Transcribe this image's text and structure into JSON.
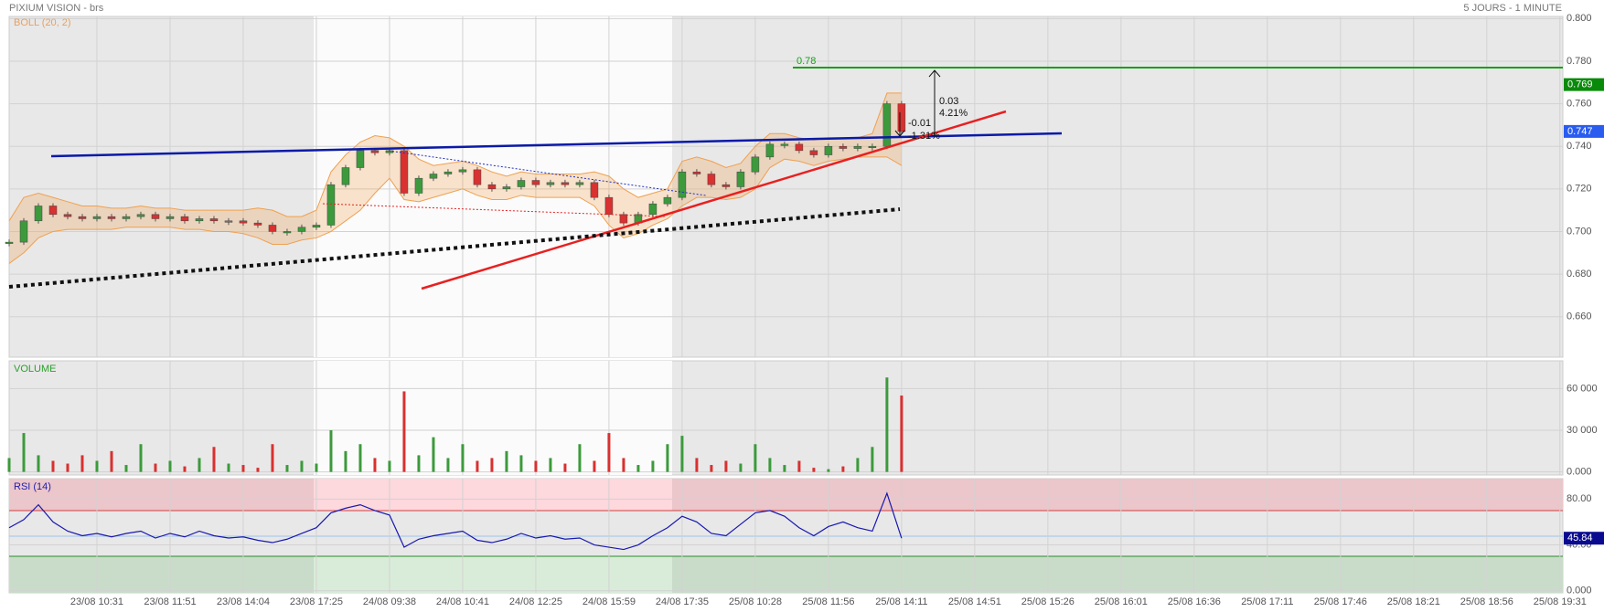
{
  "chart_data": {
    "type": "candlestick",
    "title": "PIXIUM VISION - brs",
    "subtitle": "5 JOURS - 1 MINUTE",
    "xlim": [
      0,
      106.2
    ],
    "xticks": [
      {
        "value": 6,
        "label": "23/08 10:31"
      },
      {
        "value": 11,
        "label": "23/08 11:51"
      },
      {
        "value": 16,
        "label": "23/08 14:04"
      },
      {
        "value": 21,
        "label": "23/08 17:25"
      },
      {
        "value": 26,
        "label": "24/08 09:38"
      },
      {
        "value": 31,
        "label": "24/08 10:41"
      },
      {
        "value": 36,
        "label": "24/08 12:25"
      },
      {
        "value": 41,
        "label": "24/08 15:59"
      },
      {
        "value": 46,
        "label": "24/08 17:35"
      },
      {
        "value": 51,
        "label": "25/08 10:28"
      },
      {
        "value": 56,
        "label": "25/08 11:56"
      },
      {
        "value": 61,
        "label": "25/08 14:11"
      },
      {
        "value": 66,
        "label": "25/08 14:51"
      },
      {
        "value": 71,
        "label": "25/08 15:26"
      },
      {
        "value": 76,
        "label": "25/08 16:01"
      },
      {
        "value": 81,
        "label": "25/08 16:36"
      },
      {
        "value": 86,
        "label": "25/08 17:11"
      },
      {
        "value": 91,
        "label": "25/08 17:46"
      },
      {
        "value": 96,
        "label": "25/08 18:21"
      },
      {
        "value": 101,
        "label": "25/08 18:56"
      },
      {
        "value": 106,
        "label": "25/08 19:31"
      }
    ],
    "grid": true,
    "price": {
      "label": "BOLL (20, 2)",
      "ylim": [
        0.641,
        0.801
      ],
      "yticks": [
        {
          "value": 0.66,
          "label": "0.660"
        },
        {
          "value": 0.68,
          "label": "0.680"
        },
        {
          "value": 0.7,
          "label": "0.700"
        },
        {
          "value": 0.72,
          "label": "0.720"
        },
        {
          "value": 0.74,
          "label": "0.740"
        },
        {
          "value": 0.76,
          "label": "0.760"
        },
        {
          "value": 0.78,
          "label": "0.780"
        },
        {
          "value": 0.8,
          "label": "0.800"
        }
      ],
      "close": [
        0.695,
        0.705,
        0.712,
        0.708,
        0.707,
        0.706,
        0.707,
        0.706,
        0.707,
        0.708,
        0.706,
        0.707,
        0.705,
        0.706,
        0.705,
        0.705,
        0.704,
        0.703,
        0.7,
        0.7,
        0.702,
        0.703,
        0.722,
        0.73,
        0.738,
        0.737,
        0.738,
        0.718,
        0.725,
        0.727,
        0.728,
        0.729,
        0.722,
        0.72,
        0.721,
        0.724,
        0.722,
        0.723,
        0.722,
        0.723,
        0.716,
        0.708,
        0.704,
        0.708,
        0.713,
        0.716,
        0.728,
        0.727,
        0.722,
        0.721,
        0.728,
        0.735,
        0.741,
        0.741,
        0.738,
        0.736,
        0.74,
        0.739,
        0.74,
        0.74,
        0.76,
        0.747
      ],
      "upper": [
        0.705,
        0.716,
        0.718,
        0.716,
        0.714,
        0.712,
        0.712,
        0.711,
        0.711,
        0.712,
        0.711,
        0.711,
        0.71,
        0.71,
        0.71,
        0.71,
        0.71,
        0.711,
        0.71,
        0.707,
        0.707,
        0.71,
        0.728,
        0.736,
        0.742,
        0.745,
        0.744,
        0.74,
        0.734,
        0.731,
        0.732,
        0.733,
        0.731,
        0.728,
        0.726,
        0.728,
        0.727,
        0.727,
        0.727,
        0.727,
        0.728,
        0.726,
        0.72,
        0.716,
        0.718,
        0.72,
        0.733,
        0.735,
        0.733,
        0.73,
        0.732,
        0.74,
        0.746,
        0.746,
        0.744,
        0.743,
        0.744,
        0.744,
        0.744,
        0.746,
        0.765,
        0.765
      ],
      "lower": [
        0.685,
        0.69,
        0.697,
        0.7,
        0.701,
        0.701,
        0.701,
        0.701,
        0.702,
        0.702,
        0.702,
        0.702,
        0.701,
        0.701,
        0.7,
        0.7,
        0.699,
        0.697,
        0.694,
        0.694,
        0.696,
        0.697,
        0.7,
        0.705,
        0.71,
        0.718,
        0.725,
        0.715,
        0.714,
        0.716,
        0.718,
        0.72,
        0.717,
        0.715,
        0.715,
        0.717,
        0.716,
        0.716,
        0.716,
        0.716,
        0.712,
        0.703,
        0.697,
        0.699,
        0.703,
        0.706,
        0.712,
        0.716,
        0.716,
        0.715,
        0.716,
        0.72,
        0.73,
        0.734,
        0.733,
        0.731,
        0.733,
        0.734,
        0.735,
        0.735,
        0.735,
        0.731
      ],
      "up_color": "#3c9a3c",
      "down_color": "#d93030",
      "band_color": "#f0a050",
      "high_marker": 0.769,
      "high_color": "#0a8a0a",
      "last_color": "#2a5cf0",
      "level": {
        "value": 0.777,
        "label": "0.78",
        "color": "#1aa01a"
      },
      "measure": [
        "0.03",
        "4.21%",
        "-0.01",
        "-1.31%"
      ]
    },
    "volume": {
      "label": "VOLUME",
      "ylim": [
        -2200,
        80000
      ],
      "yticks": [
        {
          "value": 0,
          "label": "0.000"
        },
        {
          "value": 30000,
          "label": "30 000"
        },
        {
          "value": 60000,
          "label": "60 000"
        }
      ],
      "values": [
        10000,
        28000,
        12000,
        8000,
        6000,
        12000,
        8000,
        15000,
        5000,
        20000,
        6000,
        8000,
        4000,
        10000,
        18000,
        6000,
        5000,
        3000,
        20000,
        5000,
        8000,
        6000,
        30000,
        15000,
        20000,
        10000,
        8000,
        58000,
        12000,
        25000,
        10000,
        20000,
        8000,
        10000,
        15000,
        12000,
        8000,
        10000,
        6000,
        20000,
        8000,
        28000,
        10000,
        5000,
        8000,
        20000,
        26000,
        10000,
        5000,
        8000,
        6000,
        20000,
        10000,
        5000,
        8000,
        3000,
        2000,
        4000,
        10000,
        18000,
        68000,
        55000
      ]
    },
    "rsi": {
      "label": "RSI (14)",
      "ylim": [
        -1.8,
        97.8
      ],
      "yticks": [
        {
          "value": 0,
          "label": "0.000"
        },
        {
          "value": 40,
          "label": "40.00"
        },
        {
          "value": 80,
          "label": "80.00"
        }
      ],
      "values": [
        55,
        62,
        75,
        60,
        52,
        48,
        50,
        47,
        50,
        52,
        46,
        50,
        47,
        52,
        48,
        46,
        47,
        44,
        42,
        45,
        50,
        55,
        68,
        72,
        75,
        70,
        66,
        38,
        45,
        48,
        50,
        52,
        44,
        42,
        45,
        50,
        46,
        48,
        45,
        46,
        40,
        38,
        36,
        40,
        48,
        55,
        65,
        60,
        50,
        48,
        58,
        68,
        70,
        65,
        55,
        48,
        56,
        60,
        55,
        52,
        85,
        45.84
      ],
      "color": "#1818b0"
    }
  }
}
